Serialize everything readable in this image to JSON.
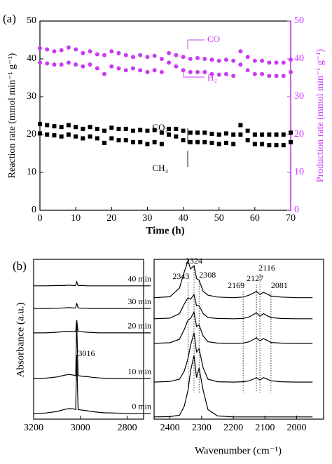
{
  "chart_data": [
    {
      "type": "scatter",
      "title": "(a)",
      "x_label": "Time (h)",
      "y_label": "Reaction rate (mmol min⁻¹ g⁻¹)",
      "y2_label": "Production rate (mmol min⁻¹ g⁻¹)",
      "xlim": [
        0,
        70
      ],
      "xticks": [
        0,
        10,
        20,
        30,
        40,
        50,
        60,
        70
      ],
      "ylim": [
        0,
        50
      ],
      "yticks": [
        0,
        10,
        20,
        30,
        40,
        50
      ],
      "y2lim": [
        0,
        50
      ],
      "y2ticks": [
        0,
        10,
        20,
        30,
        40,
        50
      ],
      "y2color": "#cc33ff",
      "x": [
        0,
        2,
        4,
        6,
        8,
        10,
        12,
        14,
        16,
        18,
        20,
        22,
        24,
        26,
        28,
        30,
        32,
        34,
        36,
        38,
        40,
        42,
        44,
        46,
        48,
        50,
        52,
        54,
        56,
        58,
        60,
        62,
        64,
        66,
        68,
        70
      ],
      "series": [
        {
          "name": "CO",
          "color": "#c83cf0",
          "marker": "circle",
          "axis": "y2",
          "values": [
            42.8,
            42.5,
            42,
            42.3,
            43,
            42.5,
            41.5,
            42,
            41.2,
            41,
            42,
            41.5,
            41,
            40.5,
            41,
            40.5,
            40.8,
            40,
            41.5,
            41,
            40.5,
            40,
            40.2,
            40,
            39.8,
            39.5,
            39.8,
            39.5,
            42,
            40.5,
            39.5,
            39.5,
            39,
            39,
            39,
            39.8
          ]
        },
        {
          "name": "H₂",
          "color": "#c83cf0",
          "marker": "circle",
          "axis": "y2",
          "values": [
            39,
            38.8,
            38.5,
            38.5,
            39,
            38.5,
            38,
            38.5,
            37.5,
            36,
            38,
            37.5,
            37,
            37.5,
            37,
            36.5,
            37,
            36.5,
            39,
            38,
            37,
            36.5,
            36.5,
            36.5,
            36,
            35.8,
            36,
            35.5,
            38.5,
            37,
            36,
            36,
            35.5,
            35.5,
            35.5,
            36.5
          ]
        },
        {
          "name": "CO₂",
          "color": "#000000",
          "marker": "square",
          "values": [
            22.8,
            22.5,
            22.2,
            22,
            22.5,
            22,
            21.5,
            22,
            21.5,
            21,
            21.8,
            21.5,
            21.5,
            21,
            21.2,
            21,
            21.2,
            20.5,
            21.5,
            21.5,
            21,
            20.5,
            20.5,
            20.5,
            20.2,
            20,
            20.3,
            20,
            22.5,
            21,
            20,
            20,
            20,
            20,
            20,
            20.5
          ]
        },
        {
          "name": "CH₄",
          "color": "#000000",
          "marker": "square",
          "values": [
            20.3,
            20,
            19.8,
            19.5,
            20,
            19.5,
            19,
            19.5,
            19,
            17.8,
            19,
            18.5,
            18.5,
            18,
            18,
            17.5,
            18,
            17.5,
            20,
            19.5,
            18.5,
            18,
            18,
            18,
            17.8,
            17.5,
            17.8,
            17.5,
            20,
            18.5,
            17.5,
            17.5,
            17.2,
            17.2,
            17.2,
            18
          ]
        }
      ]
    },
    {
      "type": "line",
      "title": "(b)",
      "y_label": "Absorbance (a.u.)",
      "xlim": [
        3200,
        2730
      ],
      "xticks": [
        3200,
        3000,
        2800
      ],
      "ylim": [
        0,
        5
      ],
      "annotations": [
        3016
      ],
      "x": [
        3200,
        3150,
        3100,
        3070,
        3050,
        3030,
        3020,
        3016,
        3010,
        2990,
        2970,
        2950,
        2920,
        2900,
        2850,
        2800,
        2750,
        2700
      ],
      "series": [
        {
          "name": "0 min",
          "color": "#000000",
          "values": [
            0.18,
            0.19,
            0.24,
            0.3,
            0.33,
            0.32,
            0.3,
            2.0,
            0.3,
            0.28,
            0.26,
            0.24,
            0.21,
            0.2,
            0.19,
            0.18,
            0.18,
            0.18
          ]
        },
        {
          "name": "10 min",
          "color": "#000000",
          "values": [
            1.27,
            1.28,
            1.32,
            1.37,
            1.4,
            1.38,
            1.36,
            3.07,
            1.36,
            1.34,
            1.33,
            1.31,
            1.29,
            1.28,
            1.27,
            1.27,
            1.27,
            1.27
          ]
        },
        {
          "name": "20 min",
          "color": "#000000",
          "values": [
            2.7,
            2.7,
            2.72,
            2.74,
            2.75,
            2.74,
            2.74,
            3.1,
            2.74,
            2.73,
            2.72,
            2.71,
            2.7,
            2.7,
            2.7,
            2.7,
            2.7,
            2.7
          ]
        },
        {
          "name": "30 min",
          "color": "#000000",
          "values": [
            3.46,
            3.46,
            3.47,
            3.48,
            3.49,
            3.48,
            3.48,
            3.63,
            3.48,
            3.47,
            3.47,
            3.46,
            3.46,
            3.46,
            3.46,
            3.46,
            3.46,
            3.46
          ]
        },
        {
          "name": "40 min",
          "color": "#000000",
          "values": [
            4.17,
            4.17,
            4.18,
            4.18,
            4.19,
            4.18,
            4.18,
            4.3,
            4.18,
            4.18,
            4.17,
            4.17,
            4.17,
            4.17,
            4.17,
            4.17,
            4.17,
            4.17
          ]
        }
      ]
    },
    {
      "type": "line",
      "x_label": "Wavenumber (cm⁻¹)",
      "xlim": [
        2450,
        1915
      ],
      "xticks": [
        2400,
        2300,
        2200,
        2100,
        2000
      ],
      "ylim": [
        0,
        5
      ],
      "annotations": [
        2343,
        2324,
        2308,
        2169,
        2127,
        2116,
        2081
      ],
      "x": [
        2450,
        2400,
        2370,
        2355,
        2343,
        2335,
        2324,
        2316,
        2308,
        2295,
        2280,
        2250,
        2200,
        2169,
        2150,
        2135,
        2127,
        2116,
        2105,
        2090,
        2081,
        2050,
        2000,
        1950
      ],
      "series": [
        {
          "name": "0 min",
          "color": "#000000",
          "values": [
            0.07,
            0.08,
            0.12,
            0.4,
            0.9,
            1.5,
            2.0,
            1.3,
            1.6,
            0.9,
            0.3,
            0.1,
            0.07,
            0.07,
            0.07,
            0.07,
            0.07,
            0.07,
            0.07,
            0.07,
            0.07,
            0.07,
            0.07,
            0.07
          ]
        },
        {
          "name": "10 min",
          "color": "#000000",
          "values": [
            1.16,
            1.18,
            1.25,
            1.5,
            1.9,
            2.3,
            2.7,
            2.1,
            2.2,
            1.6,
            1.25,
            1.17,
            1.16,
            1.17,
            1.2,
            1.26,
            1.3,
            1.22,
            1.3,
            1.24,
            1.2,
            1.17,
            1.16,
            1.16
          ]
        },
        {
          "name": "20 min",
          "color": "#000000",
          "values": [
            2.37,
            2.39,
            2.5,
            2.8,
            3.1,
            3.15,
            3.35,
            2.9,
            2.95,
            2.6,
            2.42,
            2.38,
            2.37,
            2.38,
            2.42,
            2.5,
            2.55,
            2.45,
            2.52,
            2.45,
            2.4,
            2.38,
            2.37,
            2.37
          ]
        },
        {
          "name": "30 min",
          "color": "#000000",
          "values": [
            3.14,
            3.16,
            3.3,
            3.6,
            3.8,
            3.75,
            3.9,
            3.55,
            3.55,
            3.3,
            3.18,
            3.15,
            3.14,
            3.15,
            3.2,
            3.28,
            3.33,
            3.22,
            3.3,
            3.22,
            3.18,
            3.15,
            3.14,
            3.14
          ]
        },
        {
          "name": "40 min",
          "color": "#000000",
          "values": [
            3.8,
            3.83,
            4.1,
            4.6,
            4.96,
            4.7,
            4.8,
            4.4,
            4.35,
            4.0,
            3.88,
            3.82,
            3.8,
            3.82,
            3.88,
            3.95,
            4.0,
            3.9,
            3.97,
            3.9,
            3.85,
            3.82,
            3.8,
            3.8
          ]
        }
      ]
    }
  ]
}
